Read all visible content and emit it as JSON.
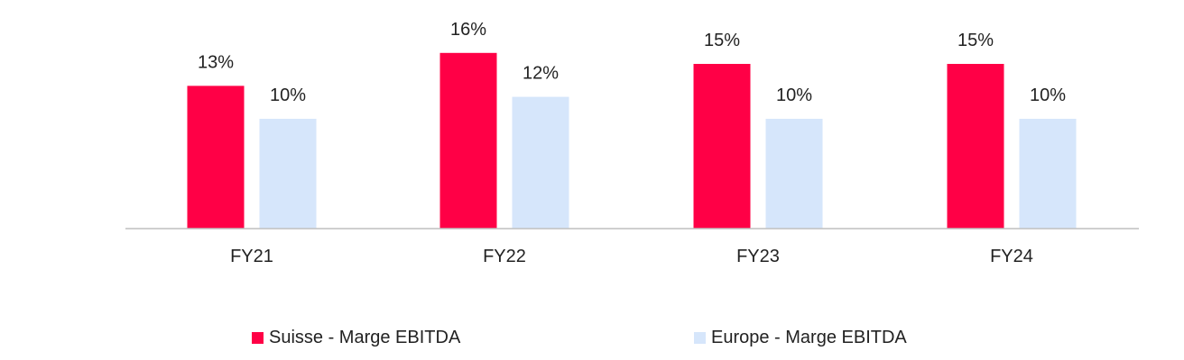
{
  "chart_data": {
    "type": "bar",
    "categories": [
      "FY21",
      "FY22",
      "FY23",
      "FY24"
    ],
    "series": [
      {
        "name": "Suisse - Marge EBITDA",
        "color": "#ff0046",
        "values": [
          13,
          16,
          15,
          15
        ],
        "labels": [
          "13%",
          "16%",
          "15%",
          "15%"
        ]
      },
      {
        "name": "Europe - Marge EBITDA",
        "color": "#d6e6fb",
        "values": [
          10,
          12,
          10,
          10
        ],
        "labels": [
          "10%",
          "12%",
          "10%",
          "10%"
        ]
      }
    ],
    "ylim": [
      0,
      16
    ],
    "grid": false,
    "legend_position": "bottom",
    "axis_color": "#bfbfbf"
  }
}
